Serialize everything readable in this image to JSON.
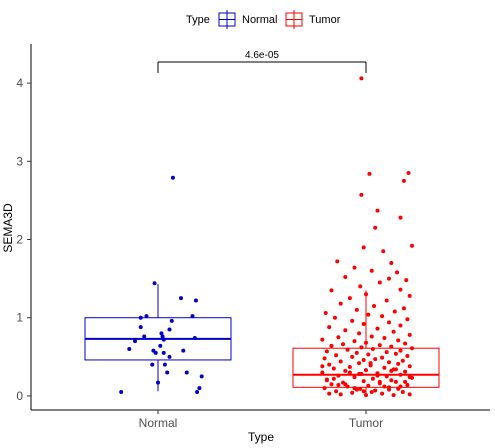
{
  "chart_data": {
    "type": "box",
    "xlabel": "Type",
    "ylabel": "SEMA3D",
    "ylim": [
      -0.18,
      4.5
    ],
    "yticks": [
      0,
      1,
      2,
      3,
      4
    ],
    "ytick_labels": [
      "0",
      "1",
      "2",
      "3",
      "4"
    ],
    "categories": [
      "Normal",
      "Tumor"
    ],
    "grid": false,
    "legend": {
      "title": "Type",
      "position": "top",
      "entries": [
        "Normal",
        "Tumor"
      ]
    },
    "annotation": {
      "text": "4.6e-05",
      "y": 4.27,
      "between": [
        "Normal",
        "Tumor"
      ]
    },
    "series": [
      {
        "name": "Normal",
        "color": "#0000CD",
        "box": {
          "q1": 0.46,
          "median": 0.73,
          "q3": 1.0,
          "whisker_low": 0.06,
          "whisker_high": 1.43
        },
        "points": [
          [
            -0.32,
            0.05
          ],
          [
            -0.25,
            0.6
          ],
          [
            -0.2,
            0.7
          ],
          [
            -0.15,
            0.88
          ],
          [
            -0.15,
            1.0
          ],
          [
            -0.05,
            0.4
          ],
          [
            -0.04,
            0.58
          ],
          [
            -0.03,
            1.44
          ],
          [
            0.02,
            0.64
          ],
          [
            0.03,
            0.8
          ],
          [
            0.04,
            0.76
          ],
          [
            0.05,
            0.72
          ],
          [
            0.05,
            0.55
          ],
          [
            0.06,
            0.4
          ],
          [
            0.08,
            0.3
          ],
          [
            0.1,
            0.85
          ],
          [
            0.1,
            0.5
          ],
          [
            0.12,
            0.96
          ],
          [
            0.13,
            2.79
          ],
          [
            0.2,
            1.25
          ],
          [
            -0.1,
            1.02
          ],
          [
            -0.12,
            0.76
          ],
          [
            0.22,
            0.58
          ],
          [
            0.25,
            0.3
          ],
          [
            0.3,
            1.02
          ],
          [
            0.32,
            0.74
          ],
          [
            0.33,
            1.22
          ],
          [
            0.34,
            0.05
          ],
          [
            0.36,
            0.1
          ],
          [
            0.38,
            0.25
          ],
          [
            0.0,
            0.17
          ],
          [
            -0.02,
            0.55
          ]
        ]
      },
      {
        "name": "Tumor",
        "color": "#FF0000",
        "box": {
          "q1": 0.11,
          "median": 0.27,
          "q3": 0.61,
          "whisker_low": 0.0,
          "whisker_high": 1.35
        },
        "points": [
          [
            -0.04,
            4.06
          ],
          [
            0.37,
            2.85
          ],
          [
            0.03,
            2.84
          ],
          [
            0.33,
            2.75
          ],
          [
            -0.04,
            2.57
          ],
          [
            0.1,
            2.37
          ],
          [
            0.3,
            2.28
          ],
          [
            0.08,
            2.15
          ],
          [
            0.4,
            1.92
          ],
          [
            -0.02,
            1.9
          ],
          [
            0.15,
            1.85
          ],
          [
            0.22,
            1.7
          ],
          [
            -0.25,
            1.72
          ],
          [
            -0.1,
            1.64
          ],
          [
            0.05,
            1.6
          ],
          [
            0.27,
            1.58
          ],
          [
            -0.18,
            1.52
          ],
          [
            0.2,
            1.5
          ],
          [
            0.35,
            1.48
          ],
          [
            0.12,
            1.45
          ],
          [
            -0.05,
            1.4
          ],
          [
            0.3,
            1.36
          ],
          [
            -0.3,
            1.35
          ],
          [
            0.0,
            1.3
          ],
          [
            0.38,
            1.28
          ],
          [
            -0.14,
            1.25
          ],
          [
            0.18,
            1.22
          ],
          [
            -0.22,
            1.18
          ],
          [
            0.07,
            1.15
          ],
          [
            0.33,
            1.12
          ],
          [
            -0.08,
            1.1
          ],
          [
            0.25,
            1.08
          ],
          [
            -0.35,
            1.06
          ],
          [
            0.02,
            1.04
          ],
          [
            0.14,
            1.02
          ],
          [
            -0.27,
            1.0
          ],
          [
            0.36,
            0.98
          ],
          [
            -0.12,
            0.96
          ],
          [
            0.2,
            0.94
          ],
          [
            -0.02,
            0.92
          ],
          [
            0.3,
            0.9
          ],
          [
            -0.32,
            0.88
          ],
          [
            0.1,
            0.86
          ],
          [
            -0.18,
            0.84
          ],
          [
            0.24,
            0.82
          ],
          [
            -0.06,
            0.8
          ],
          [
            0.38,
            0.78
          ],
          [
            0.05,
            0.76
          ],
          [
            -0.24,
            0.75
          ],
          [
            0.16,
            0.74
          ],
          [
            -0.38,
            0.72
          ],
          [
            0.28,
            0.71
          ],
          [
            -0.1,
            0.7
          ],
          [
            0.0,
            0.68
          ],
          [
            0.34,
            0.67
          ],
          [
            -0.2,
            0.66
          ],
          [
            0.12,
            0.65
          ],
          [
            -0.3,
            0.64
          ],
          [
            0.22,
            0.63
          ],
          [
            -0.04,
            0.62
          ],
          [
            0.4,
            0.61
          ],
          [
            0.06,
            0.6
          ],
          [
            -0.16,
            0.59
          ],
          [
            0.3,
            0.58
          ],
          [
            -0.34,
            0.57
          ],
          [
            0.18,
            0.56
          ],
          [
            -0.08,
            0.55
          ],
          [
            0.26,
            0.54
          ],
          [
            0.02,
            0.53
          ],
          [
            -0.26,
            0.52
          ],
          [
            0.36,
            0.51
          ],
          [
            -0.12,
            0.5
          ],
          [
            0.14,
            0.49
          ],
          [
            -0.36,
            0.48
          ],
          [
            0.08,
            0.47
          ],
          [
            -0.02,
            0.46
          ],
          [
            0.32,
            0.45
          ],
          [
            -0.22,
            0.44
          ],
          [
            0.2,
            0.43
          ],
          [
            -0.06,
            0.42
          ],
          [
            0.28,
            0.41
          ],
          [
            -0.32,
            0.4
          ],
          [
            0.04,
            0.39
          ],
          [
            0.38,
            0.38
          ],
          [
            -0.14,
            0.37
          ],
          [
            0.16,
            0.36
          ],
          [
            -0.28,
            0.35
          ],
          [
            0.24,
            0.34
          ],
          [
            0.0,
            0.33
          ],
          [
            -0.18,
            0.32
          ],
          [
            0.34,
            0.31
          ],
          [
            -0.38,
            0.3
          ],
          [
            0.1,
            0.29
          ],
          [
            -0.04,
            0.28
          ],
          [
            0.3,
            0.27
          ],
          [
            -0.24,
            0.26
          ],
          [
            0.18,
            0.25
          ],
          [
            -0.1,
            0.24
          ],
          [
            0.4,
            0.23
          ],
          [
            0.06,
            0.22
          ],
          [
            -0.34,
            0.21
          ],
          [
            0.22,
            0.2
          ],
          [
            -0.02,
            0.19
          ],
          [
            0.26,
            0.18
          ],
          [
            -0.2,
            0.17
          ],
          [
            0.12,
            0.16
          ],
          [
            -0.3,
            0.15
          ],
          [
            0.36,
            0.14
          ],
          [
            0.02,
            0.13
          ],
          [
            -0.16,
            0.12
          ],
          [
            0.2,
            0.11
          ],
          [
            -0.36,
            0.1
          ],
          [
            0.28,
            0.09
          ],
          [
            -0.08,
            0.08
          ],
          [
            0.08,
            0.07
          ],
          [
            -0.26,
            0.06
          ],
          [
            0.32,
            0.05
          ],
          [
            -0.12,
            0.04
          ],
          [
            0.14,
            0.03
          ],
          [
            0.38,
            0.02
          ],
          [
            -0.22,
            0.02
          ],
          [
            0.0,
            0.01
          ],
          [
            0.24,
            0.01
          ],
          [
            -0.32,
            0.03
          ],
          [
            0.05,
            0.05
          ],
          [
            -0.05,
            0.09
          ],
          [
            0.16,
            0.12
          ],
          [
            -0.18,
            0.15
          ],
          [
            0.34,
            0.18
          ],
          [
            -0.28,
            0.22
          ],
          [
            0.1,
            0.26
          ],
          [
            -0.14,
            0.3
          ],
          [
            0.26,
            0.34
          ],
          [
            -0.38,
            0.38
          ],
          [
            0.04,
            0.42
          ],
          [
            -0.02,
            0.06
          ],
          [
            0.2,
            0.08
          ],
          [
            -0.1,
            0.1
          ],
          [
            0.3,
            0.12
          ],
          [
            -0.24,
            0.14
          ],
          [
            0.12,
            0.18
          ],
          [
            -0.34,
            0.2
          ],
          [
            0.38,
            0.24
          ],
          [
            -0.06,
            0.28
          ],
          [
            0.22,
            0.32
          ]
        ]
      }
    ]
  }
}
